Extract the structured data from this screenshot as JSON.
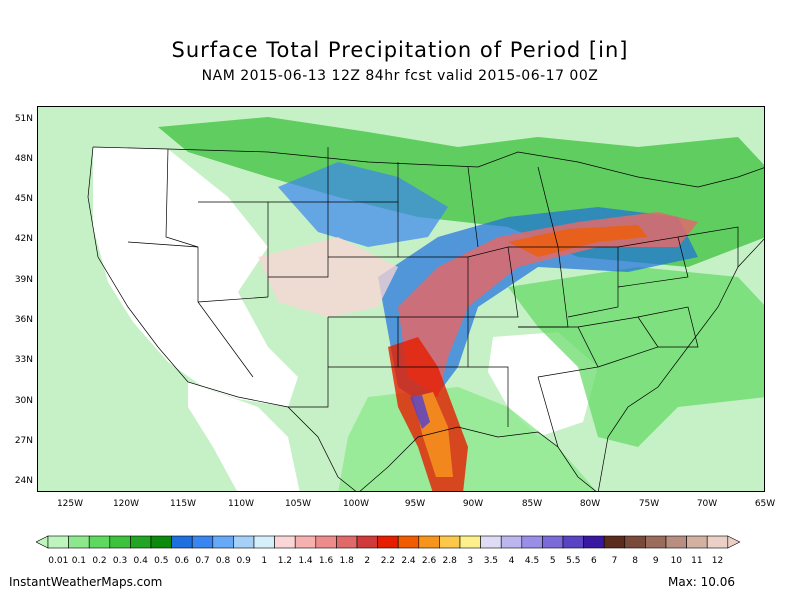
{
  "header": {
    "title": "Surface Total Precipitation of Period [in]",
    "subtitle": "NAM 2015-06-13 12Z 84hr fcst valid 2015-06-17 00Z"
  },
  "map": {
    "latitude_labels": [
      "51N",
      "48N",
      "45N",
      "42N",
      "39N",
      "36N",
      "33N",
      "30N",
      "27N",
      "24N"
    ],
    "longitude_labels": [
      "125W",
      "120W",
      "115W",
      "110W",
      "105W",
      "100W",
      "95W",
      "90W",
      "85W",
      "80W",
      "75W",
      "70W",
      "65W"
    ]
  },
  "legend": {
    "levels": [
      "0.01",
      "0.1",
      "0.2",
      "0.3",
      "0.4",
      "0.5",
      "0.6",
      "0.7",
      "0.8",
      "0.9",
      "1",
      "1.2",
      "1.4",
      "1.6",
      "1.8",
      "2",
      "2.2",
      "2.4",
      "2.6",
      "2.8",
      "3",
      "3.5",
      "4",
      "4.5",
      "5",
      "5.5",
      "6",
      "7",
      "8",
      "9",
      "10",
      "11",
      "12"
    ],
    "colors": [
      "#bdf5bd",
      "#8de88d",
      "#5fd85f",
      "#3cc23c",
      "#22a522",
      "#0c8a0c",
      "#1e6fe0",
      "#3a86f0",
      "#66a9f6",
      "#a6d0f8",
      "#d6f0fb",
      "#fbd6d6",
      "#f5b0b0",
      "#ee8c8c",
      "#e06a6a",
      "#d03a3a",
      "#e61e00",
      "#f25c00",
      "#f7941d",
      "#fbc84a",
      "#fdf08c",
      "#dedcf4",
      "#bbb6ee",
      "#9a8fe6",
      "#7a6bd8",
      "#5a44c4",
      "#3818a0",
      "#5a2c1e",
      "#7a4a3a",
      "#9a6c5c",
      "#b88e80",
      "#d2b0a2",
      "#ead0c6"
    ]
  },
  "footer": {
    "credit": "InstantWeatherMaps.com",
    "max": "Max: 10.06"
  }
}
